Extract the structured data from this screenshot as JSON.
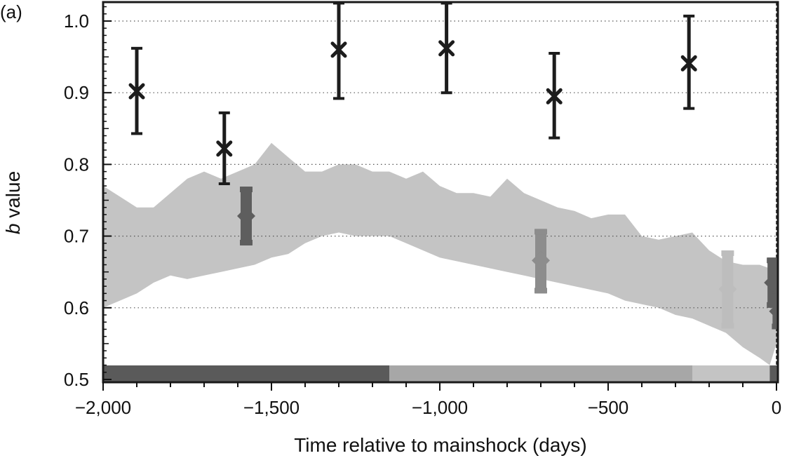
{
  "panel_label": "(a)",
  "chart_data": {
    "type": "scatter",
    "xlabel": "Time relative to mainshock (days)",
    "ylabel_italic": "b",
    "ylabel_rest": " value",
    "xlim": [
      -2000,
      10
    ],
    "ylim": [
      0.5,
      1.02
    ],
    "x_ticks": [
      -2000,
      -1500,
      -1000,
      -500,
      0
    ],
    "x_tick_labels": [
      "−2,000",
      "−1,500",
      "−1,000",
      "−500",
      "0"
    ],
    "y_ticks": [
      0.5,
      0.6,
      0.7,
      0.8,
      0.9,
      1.0
    ],
    "y_tick_labels": [
      "0.5",
      "0.6",
      "0.7",
      "0.8",
      "0.9",
      "1.0"
    ],
    "grid": "horizontal dotted",
    "mainshock_line_x": 0,
    "colors": {
      "band": "#c4c4c4",
      "black_series": "#1c1c1c",
      "dark_series": "#5e5e5e",
      "mid_series": "#8d8d8d",
      "light_series": "#bdbdbd",
      "strip_dark": "#5a5a5a",
      "strip_mid": "#a7a7a7",
      "strip_light": "#c4c4c4"
    },
    "band": {
      "x": [
        -2000,
        -1950,
        -1900,
        -1850,
        -1800,
        -1750,
        -1700,
        -1650,
        -1600,
        -1550,
        -1500,
        -1450,
        -1400,
        -1350,
        -1300,
        -1250,
        -1200,
        -1150,
        -1100,
        -1050,
        -1000,
        -950,
        -900,
        -850,
        -800,
        -750,
        -700,
        -650,
        -600,
        -550,
        -500,
        -450,
        -400,
        -350,
        -300,
        -250,
        -200,
        -150,
        -100,
        -50,
        -20,
        0,
        10
      ],
      "upper": [
        0.77,
        0.755,
        0.74,
        0.74,
        0.76,
        0.78,
        0.79,
        0.78,
        0.79,
        0.8,
        0.83,
        0.81,
        0.79,
        0.79,
        0.8,
        0.8,
        0.79,
        0.79,
        0.78,
        0.79,
        0.77,
        0.76,
        0.76,
        0.755,
        0.78,
        0.76,
        0.75,
        0.74,
        0.735,
        0.725,
        0.73,
        0.73,
        0.7,
        0.695,
        0.7,
        0.705,
        0.68,
        0.665,
        0.66,
        0.66,
        0.655,
        0.65,
        0.64
      ],
      "lower": [
        0.6,
        0.61,
        0.62,
        0.635,
        0.645,
        0.64,
        0.645,
        0.65,
        0.655,
        0.66,
        0.67,
        0.675,
        0.69,
        0.7,
        0.705,
        0.7,
        0.7,
        0.7,
        0.69,
        0.68,
        0.67,
        0.665,
        0.66,
        0.655,
        0.65,
        0.645,
        0.64,
        0.635,
        0.63,
        0.625,
        0.62,
        0.61,
        0.605,
        0.6,
        0.59,
        0.585,
        0.575,
        0.565,
        0.545,
        0.53,
        0.52,
        0.55,
        0.56
      ]
    },
    "series": [
      {
        "color_key": "black_series",
        "points": [
          {
            "x": -1900,
            "y": 0.902,
            "low": 0.843,
            "high": 0.962
          },
          {
            "x": -1640,
            "y": 0.822,
            "low": 0.773,
            "high": 0.872
          },
          {
            "x": -1300,
            "y": 0.96,
            "low": 0.892,
            "high": 1.025
          },
          {
            "x": -980,
            "y": 0.962,
            "low": 0.9,
            "high": 1.025
          },
          {
            "x": -660,
            "y": 0.895,
            "low": 0.837,
            "high": 0.955
          },
          {
            "x": -260,
            "y": 0.941,
            "low": 0.878,
            "high": 1.007
          }
        ]
      },
      {
        "color_key": "dark_series",
        "points": [
          {
            "x": -1575,
            "y": 0.728,
            "low": 0.687,
            "high": 0.769
          },
          {
            "x": -10,
            "y": 0.635,
            "low": 0.6,
            "high": 0.67
          },
          {
            "x": 5,
            "y": 0.595,
            "low": 0.57,
            "high": 0.62
          }
        ]
      },
      {
        "color_key": "mid_series",
        "points": [
          {
            "x": -700,
            "y": 0.666,
            "low": 0.62,
            "high": 0.71
          }
        ]
      },
      {
        "color_key": "light_series",
        "points": [
          {
            "x": -145,
            "y": 0.626,
            "low": 0.571,
            "high": 0.68
          }
        ]
      }
    ],
    "time_strip": [
      {
        "from": -2000,
        "to": -1150,
        "color_key": "strip_dark"
      },
      {
        "from": -1150,
        "to": -250,
        "color_key": "strip_mid"
      },
      {
        "from": -250,
        "to": -20,
        "color_key": "strip_light"
      },
      {
        "from": -20,
        "to": 10,
        "color_key": "strip_dark"
      }
    ]
  }
}
